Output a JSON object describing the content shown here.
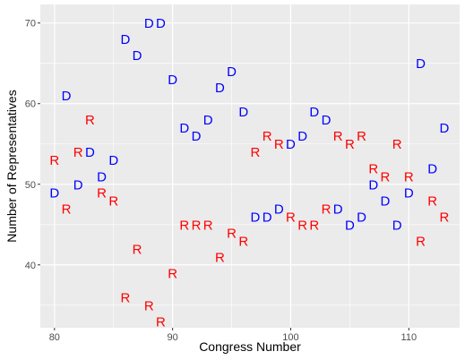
{
  "chart_data": {
    "type": "scatter",
    "xlabel": "Congress Number",
    "ylabel": "Number of Representatives",
    "xlim": [
      78.8,
      114.3
    ],
    "ylim": [
      32.2,
      72.3
    ],
    "x_ticks": [
      80,
      90,
      100,
      110
    ],
    "y_ticks": [
      40,
      50,
      60,
      70
    ],
    "grid": true,
    "panel_background": "#ebebeb",
    "grid_color": "#ffffff",
    "colors": {
      "D": "#0000ff",
      "R": "#ff0000"
    },
    "series": [
      {
        "party": "D",
        "points": [
          [
            80,
            49
          ],
          [
            81,
            61
          ],
          [
            82,
            50
          ],
          [
            83,
            54
          ],
          [
            84,
            51
          ],
          [
            85,
            53
          ],
          [
            86,
            68
          ],
          [
            87,
            66
          ],
          [
            88,
            70
          ],
          [
            89,
            70
          ],
          [
            90,
            63
          ],
          [
            91,
            57
          ],
          [
            92,
            56
          ],
          [
            93,
            58
          ],
          [
            94,
            62
          ],
          [
            95,
            64
          ],
          [
            96,
            59
          ],
          [
            97,
            46
          ],
          [
            98,
            46
          ],
          [
            99,
            47
          ],
          [
            100,
            55
          ],
          [
            101,
            56
          ],
          [
            102,
            59
          ],
          [
            103,
            58
          ],
          [
            104,
            47
          ],
          [
            105,
            45
          ],
          [
            106,
            46
          ],
          [
            107,
            50
          ],
          [
            108,
            48
          ],
          [
            109,
            45
          ],
          [
            110,
            49
          ],
          [
            111,
            65
          ],
          [
            112,
            52
          ],
          [
            113,
            57
          ]
        ]
      },
      {
        "party": "R",
        "points": [
          [
            80,
            53
          ],
          [
            81,
            47
          ],
          [
            82,
            54
          ],
          [
            83,
            58
          ],
          [
            84,
            49
          ],
          [
            85,
            48
          ],
          [
            86,
            36
          ],
          [
            87,
            42
          ],
          [
            88,
            35
          ],
          [
            89,
            33
          ],
          [
            90,
            39
          ],
          [
            91,
            45
          ],
          [
            92,
            45
          ],
          [
            93,
            45
          ],
          [
            94,
            41
          ],
          [
            95,
            44
          ],
          [
            96,
            43
          ],
          [
            97,
            54
          ],
          [
            98,
            56
          ],
          [
            99,
            55
          ],
          [
            100,
            46
          ],
          [
            101,
            45
          ],
          [
            102,
            45
          ],
          [
            103,
            47
          ],
          [
            104,
            56
          ],
          [
            105,
            55
          ],
          [
            106,
            56
          ],
          [
            107,
            52
          ],
          [
            108,
            51
          ],
          [
            109,
            55
          ],
          [
            110,
            51
          ],
          [
            111,
            43
          ],
          [
            112,
            48
          ],
          [
            113,
            46
          ]
        ]
      }
    ]
  }
}
